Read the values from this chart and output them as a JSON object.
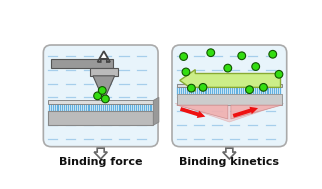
{
  "bg_color": "#ffffff",
  "box_bg": "#e8f4fb",
  "box_border": "#aaaaaa",
  "text_color": "#111111",
  "label1": "Binding force",
  "label2": "Binding kinetics",
  "green_color": "#33dd11",
  "green_dark": "#115500",
  "blue_stripe": "#66aadd",
  "tip_color": "#999999",
  "tip_light": "#bbbbbb",
  "tip_edge": "#555555",
  "platform_blue": "#55aadd",
  "platform_gray": "#bbbbbb",
  "platform_dark": "#888888",
  "block_color": "#bbbbbb",
  "block_side": "#999999",
  "arrow_up_fill": "#ffffff",
  "arrow_up_edge": "#444444",
  "cantilever_fill": "#999999",
  "cantilever_edge": "#555555",
  "green_arrow_fill": "#ccee88",
  "green_arrow_edge": "#88aa33",
  "red_arrow": "#ee1111",
  "pink_fill": "#f0b0b0",
  "down_arrow_fill": "#ffffff",
  "down_arrow_edge": "#666666"
}
